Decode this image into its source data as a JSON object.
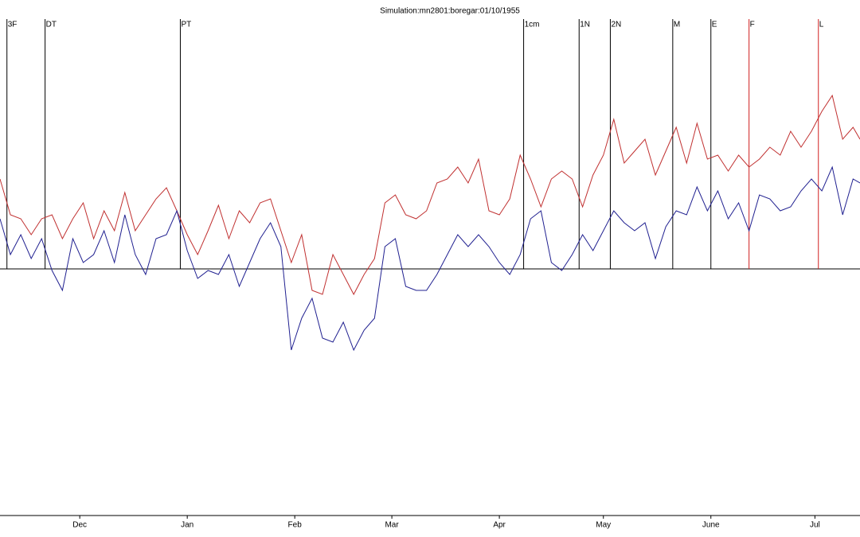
{
  "chart_data": {
    "type": "line",
    "title": "Simulation:mn2801:boregar:01/10/1955",
    "x": [
      0,
      3,
      6,
      9,
      12,
      15,
      18,
      21,
      24,
      27,
      30,
      33,
      36,
      39,
      42,
      45,
      48,
      51,
      54,
      57,
      60,
      63,
      66,
      69,
      72,
      75,
      78,
      81,
      84,
      87,
      90,
      93,
      96,
      99,
      102,
      105,
      108,
      111,
      114,
      117,
      120,
      123,
      126,
      129,
      132,
      135,
      138,
      141,
      144,
      147,
      150,
      153,
      156,
      159,
      162,
      165,
      168,
      171,
      174,
      177,
      180,
      183,
      186,
      189,
      192,
      195,
      198,
      201,
      204,
      207,
      210,
      213,
      216,
      219,
      222,
      225,
      228,
      231,
      234,
      237,
      240,
      243,
      246,
      248
    ],
    "series": [
      {
        "color": "#c03030",
        "values": [
          11.3,
          6.8,
          6.3,
          4.3,
          6.3,
          6.8,
          3.8,
          6.3,
          8.3,
          3.8,
          7.3,
          4.8,
          9.6,
          4.8,
          6.8,
          8.8,
          10.2,
          7.3,
          4.3,
          1.8,
          4.8,
          8.0,
          3.8,
          7.3,
          5.8,
          8.3,
          8.8,
          4.8,
          0.8,
          4.3,
          -2.7,
          -3.2,
          1.8,
          -0.7,
          -3.2,
          -0.7,
          1.3,
          8.3,
          9.3,
          6.8,
          6.3,
          7.3,
          10.8,
          11.3,
          12.8,
          10.8,
          13.8,
          7.3,
          6.8,
          8.8,
          14.3,
          11.3,
          7.8,
          11.3,
          12.3,
          11.3,
          7.8,
          11.8,
          14.3,
          18.8,
          13.3,
          14.8,
          16.3,
          11.8,
          14.8,
          17.8,
          13.3,
          18.3,
          13.8,
          14.3,
          12.3,
          14.3,
          12.8,
          13.8,
          15.3,
          14.3,
          17.3,
          15.3,
          17.3,
          19.8,
          21.8,
          16.3,
          17.8,
          16.3
        ]
      },
      {
        "color": "#202090",
        "values": [
          6.3,
          1.8,
          4.3,
          1.3,
          3.8,
          -0.2,
          -2.7,
          3.8,
          0.8,
          1.8,
          4.8,
          0.8,
          6.8,
          1.8,
          -0.7,
          3.8,
          4.3,
          7.3,
          2.3,
          -1.2,
          -0.2,
          -0.7,
          1.8,
          -2.2,
          0.8,
          3.8,
          5.8,
          2.8,
          -10.2,
          -6.2,
          -3.7,
          -8.7,
          -9.2,
          -6.7,
          -10.2,
          -7.7,
          -6.2,
          2.8,
          3.8,
          -2.2,
          -2.7,
          -2.7,
          -0.7,
          1.8,
          4.3,
          2.8,
          4.3,
          2.8,
          0.8,
          -0.7,
          1.8,
          6.3,
          7.3,
          0.8,
          -0.2,
          1.8,
          4.3,
          2.3,
          4.8,
          7.3,
          5.8,
          4.8,
          5.8,
          1.3,
          5.3,
          7.3,
          6.8,
          10.3,
          7.3,
          9.8,
          6.3,
          8.3,
          4.8,
          9.3,
          8.8,
          7.3,
          7.8,
          9.8,
          11.3,
          9.8,
          12.8,
          6.8,
          11.3,
          10.8
        ]
      }
    ],
    "xlim": [
      0,
      248
    ],
    "ylim": [
      -31,
      32
    ],
    "xticks": [
      {
        "value": 23,
        "label": "Dec"
      },
      {
        "value": 54,
        "label": "Jan"
      },
      {
        "value": 85,
        "label": "Feb"
      },
      {
        "value": 113,
        "label": "Mar"
      },
      {
        "value": 144,
        "label": "Apr"
      },
      {
        "value": 174,
        "label": "May"
      },
      {
        "value": 205,
        "label": "June"
      },
      {
        "value": 235,
        "label": "Jul"
      }
    ],
    "hline": 0,
    "annotations": [
      {
        "label": "3F",
        "x": 2,
        "color": "#000000"
      },
      {
        "label": "DT",
        "x": 13,
        "color": "#000000"
      },
      {
        "label": "PT",
        "x": 52,
        "color": "#000000"
      },
      {
        "label": "1cm",
        "x": 151,
        "color": "#000000"
      },
      {
        "label": "1N",
        "x": 167,
        "color": "#000000"
      },
      {
        "label": "2N",
        "x": 176,
        "color": "#000000"
      },
      {
        "label": "M",
        "x": 194,
        "color": "#000000"
      },
      {
        "label": "E",
        "x": 205,
        "color": "#000000"
      },
      {
        "label": "F",
        "x": 216,
        "color": "#d02020"
      },
      {
        "label": "L",
        "x": 236,
        "color": "#d02020"
      }
    ]
  }
}
